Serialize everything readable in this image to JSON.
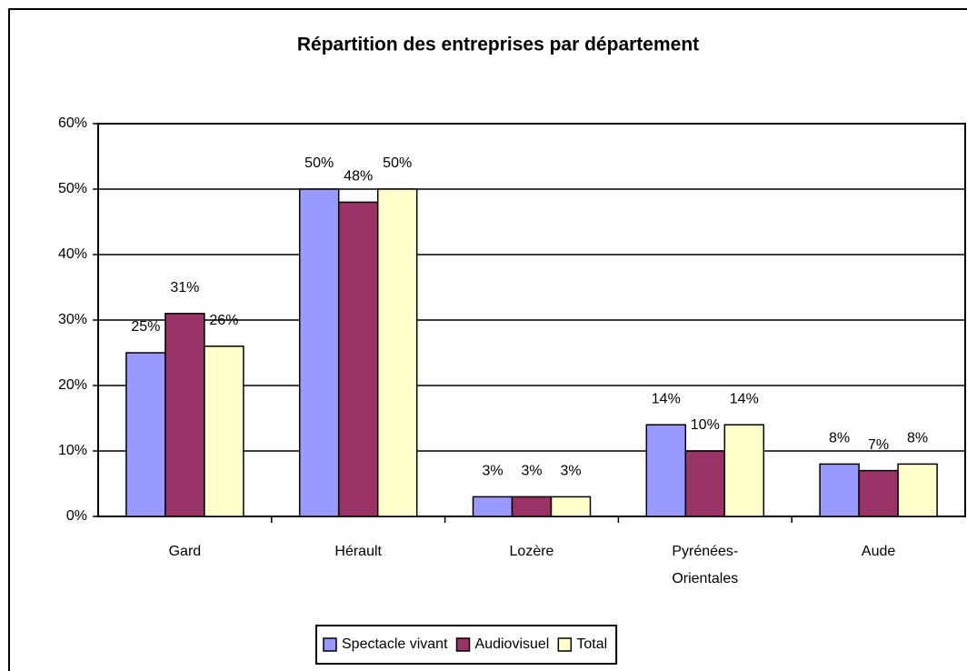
{
  "chart_data": {
    "type": "bar",
    "title": "Répartition des entreprises par département",
    "categories": [
      "Gard",
      "Hérault",
      "Lozère",
      "Pyrénées-Orientales",
      "Aude"
    ],
    "series": [
      {
        "name": "Spectacle vivant",
        "color": "#9999ff",
        "values": [
          25,
          50,
          3,
          14,
          8
        ],
        "value_labels": [
          "25%",
          "50%",
          "3%",
          "14%",
          "8%"
        ]
      },
      {
        "name": "Audiovisuel",
        "color": "#993366",
        "values": [
          31,
          48,
          3,
          10,
          7
        ],
        "value_labels": [
          "31%",
          "48%",
          "3%",
          "10%",
          "7%"
        ]
      },
      {
        "name": "Total",
        "color": "#ffffcc",
        "values": [
          26,
          50,
          3,
          14,
          8
        ],
        "value_labels": [
          "26%",
          "50%",
          "3%",
          "14%",
          "8%"
        ]
      }
    ],
    "ylim": [
      0,
      60
    ],
    "yticks": [
      {
        "value": 0,
        "label": "0%"
      },
      {
        "value": 10,
        "label": "10%"
      },
      {
        "value": 20,
        "label": "20%"
      },
      {
        "value": 30,
        "label": "30%"
      },
      {
        "value": 40,
        "label": "40%"
      },
      {
        "value": 50,
        "label": "50%"
      },
      {
        "value": 60,
        "label": "60%"
      }
    ],
    "grid": true,
    "legend": "bottom"
  }
}
